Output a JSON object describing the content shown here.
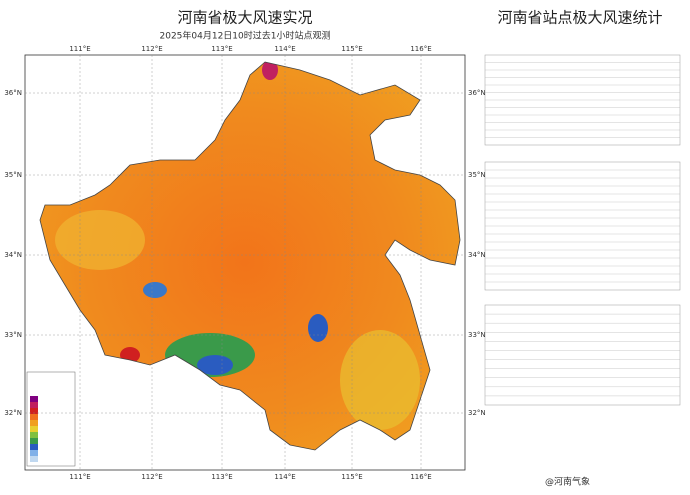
{
  "map": {
    "title": "河南省极大风速实况",
    "subtitle": "2025年04月12日10时过去1小时站点观测",
    "lon_labels": [
      "111°E",
      "112°E",
      "113°E",
      "114°E",
      "115°E",
      "116°E"
    ],
    "lat_labels": [
      "36°N",
      "35°N",
      "34°N",
      "33°N",
      "32°N"
    ]
  },
  "stats": {
    "title": "河南省站点极大风速统计"
  },
  "watermark": "@河南气象"
}
